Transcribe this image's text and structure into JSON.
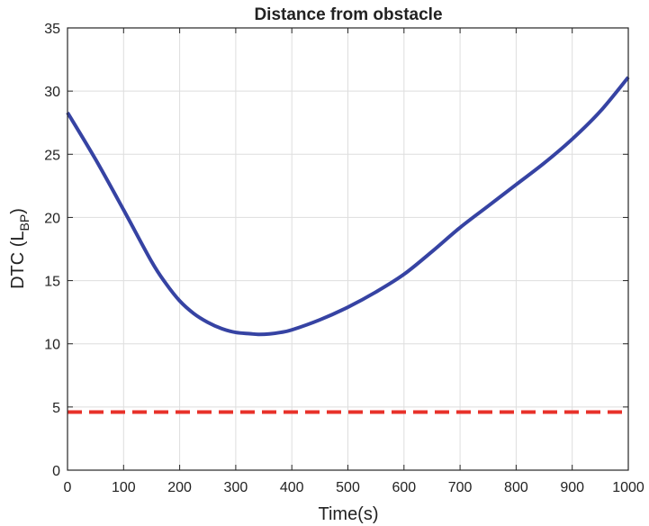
{
  "chart_data": {
    "type": "line",
    "title": "Distance from obstacle",
    "xlabel": "Time(s)",
    "ylabel": {
      "main": "DTC (L",
      "sub": "BP",
      "close": ")"
    },
    "xlim": [
      0,
      1000
    ],
    "ylim": [
      0,
      35
    ],
    "xticks": [
      "0",
      "100",
      "200",
      "300",
      "400",
      "500",
      "600",
      "700",
      "800",
      "900",
      "1000"
    ],
    "yticks": [
      "0",
      "5",
      "10",
      "15",
      "20",
      "25",
      "30",
      "35"
    ],
    "grid": true,
    "series": [
      {
        "color": "#3643a3",
        "style": "solid",
        "x": [
          0,
          50,
          100,
          150,
          175,
          200,
          225,
          250,
          275,
          300,
          325,
          340,
          360,
          380,
          400,
          450,
          500,
          550,
          600,
          650,
          700,
          750,
          800,
          850,
          900,
          950,
          1000
        ],
        "y": [
          28.3,
          24.6,
          20.6,
          16.5,
          14.8,
          13.4,
          12.4,
          11.7,
          11.2,
          10.9,
          10.8,
          10.75,
          10.78,
          10.9,
          11.1,
          11.9,
          12.9,
          14.1,
          15.5,
          17.3,
          19.2,
          20.9,
          22.6,
          24.3,
          26.2,
          28.4,
          31.1
        ]
      },
      {
        "color": "#e8312a",
        "style": "dashed",
        "x": [
          0,
          1000
        ],
        "y": [
          4.6,
          4.6
        ]
      }
    ]
  }
}
